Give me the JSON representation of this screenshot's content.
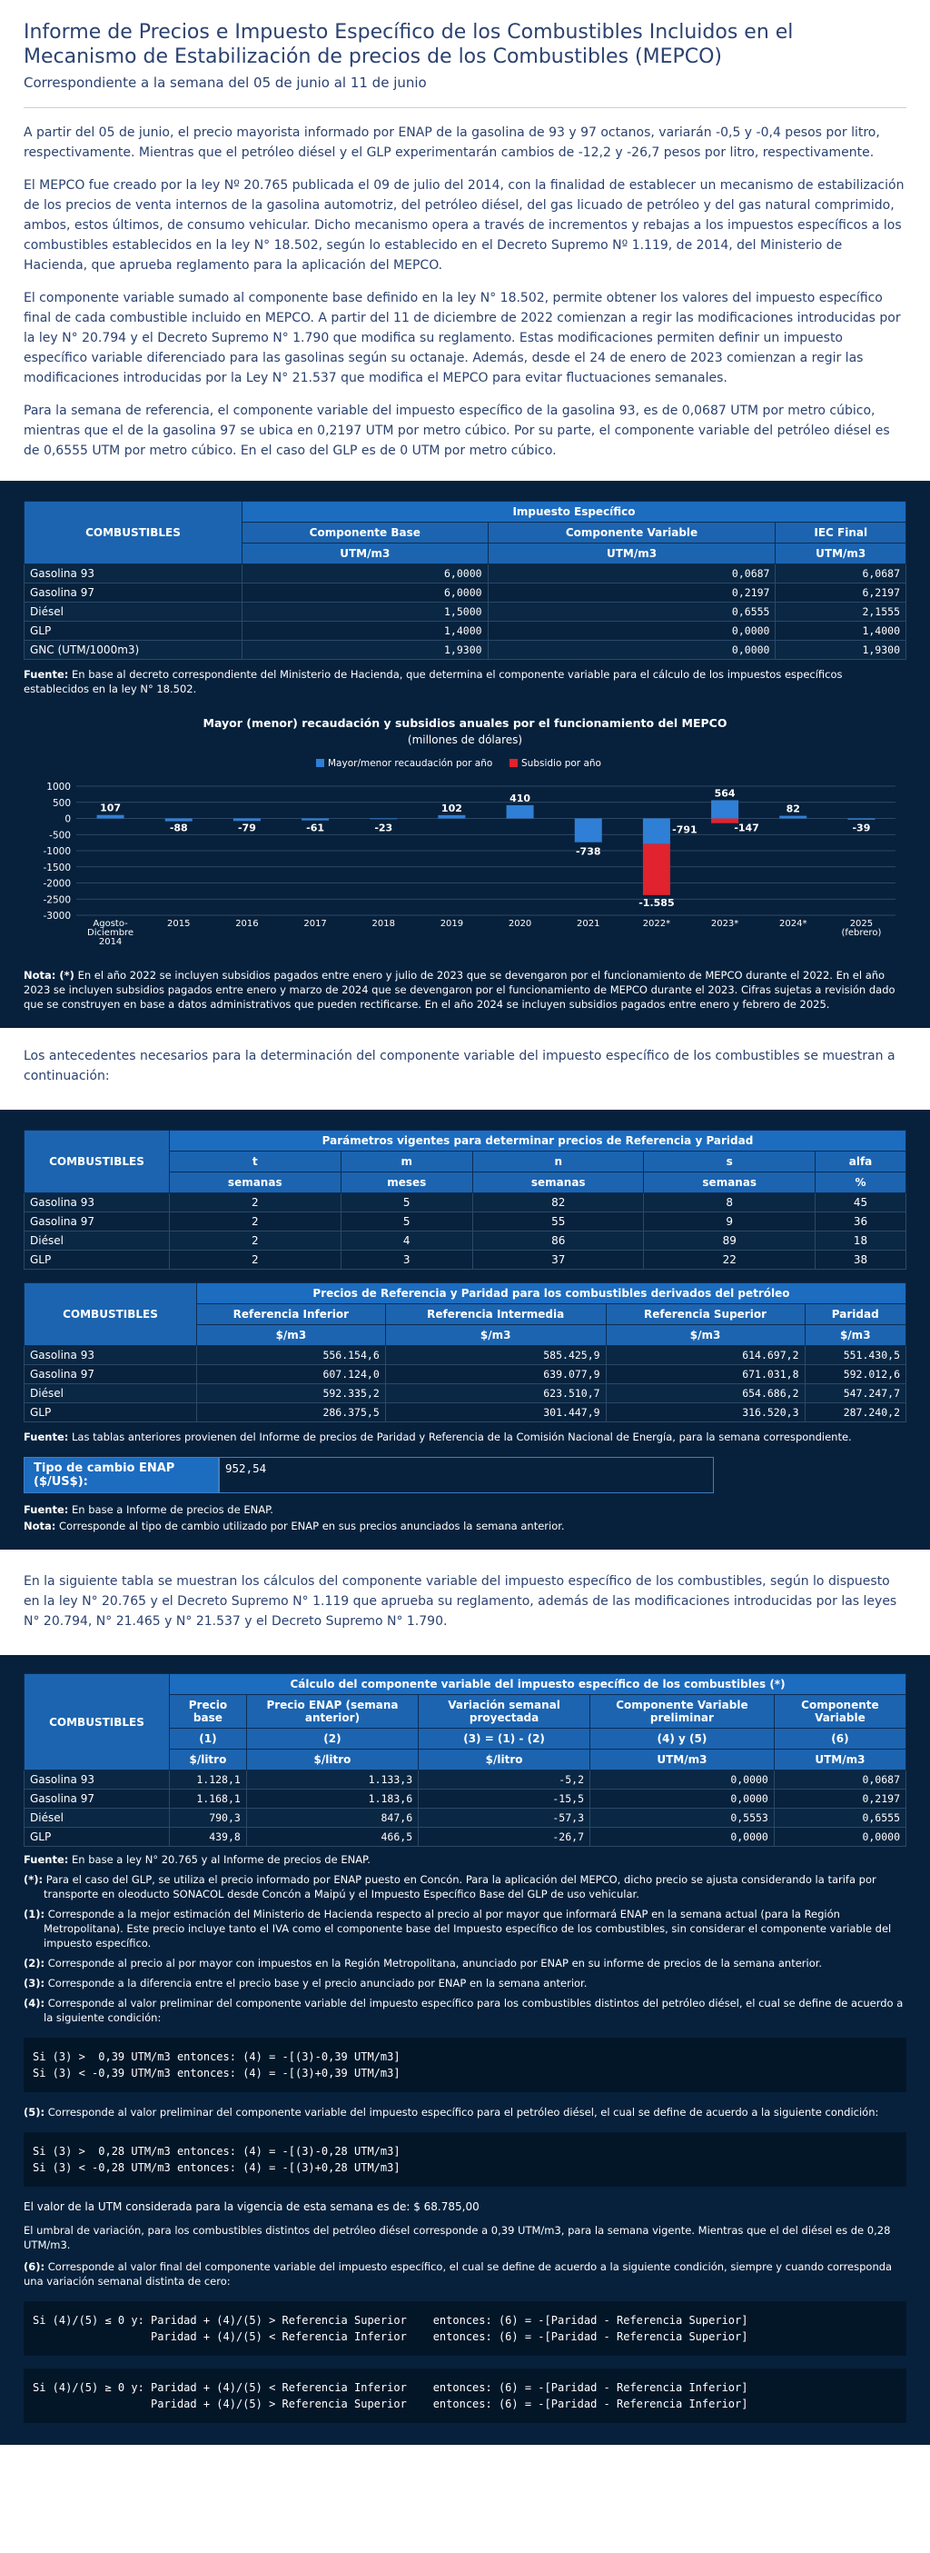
{
  "header": {
    "title": "Informe de Precios e Impuesto Específico de los Combustibles Incluidos en el Mecanismo de Estabilización de precios de los Combustibles (MEPCO)",
    "subtitle": "Correspondiente a la semana del 05 de junio al 11 de junio"
  },
  "intro": [
    "A partir del 05 de junio, el precio mayorista informado por ENAP de la gasolina de 93 y 97 octanos, variarán -0,5 y -0,4 pesos por litro, respectivamente. Mientras que el petróleo diésel y el GLP experimentarán cambios de -12,2 y -26,7 pesos por litro, respectivamente.",
    "El MEPCO fue creado por la ley Nº 20.765 publicada el 09 de julio del 2014, con la finalidad de establecer un mecanismo de estabilización de los precios de venta internos de la gasolina automotriz, del petróleo diésel, del gas licuado de petróleo y del gas natural comprimido, ambos, estos últimos, de consumo vehicular. Dicho mecanismo opera a través de incrementos y rebajas a los impuestos específicos a los combustibles establecidos en la ley N° 18.502, según lo establecido en el Decreto Supremo Nº 1.119, de 2014, del Ministerio de Hacienda, que aprueba reglamento para la aplicación del MEPCO.",
    "El componente variable sumado al componente base definido en la ley N° 18.502, permite obtener los valores del impuesto específico final de cada combustible incluido en MEPCO. A partir del 11 de diciembre de 2022 comienzan a regir las modificaciones introducidas por la ley N° 20.794 y el Decreto Supremo N° 1.790 que modifica su reglamento. Estas modificaciones permiten definir un impuesto específico variable diferenciado para las gasolinas según su octanaje. Además, desde el 24 de enero de 2023 comienzan a regir las modificaciones introducidas por la Ley N° 21.537 que modifica el MEPCO para evitar fluctuaciones semanales.",
    "Para la semana de referencia, el componente variable del impuesto específico de la gasolina 93, es de 0,0687 UTM por metro cúbico, mientras que el de la gasolina 97 se ubica en 0,2197 UTM por metro cúbico. Por su parte, el componente variable del petróleo diésel es de 0,6555 UTM por metro cúbico. En el caso del GLP es de 0 UTM por metro cúbico."
  ],
  "iec": {
    "group": "Impuesto Específico",
    "col0": "COMBUSTIBLES",
    "cols": [
      "Componente Base",
      "Componente Variable",
      "IEC Final"
    ],
    "units": [
      "UTM/m3",
      "UTM/m3",
      "UTM/m3"
    ],
    "rows": [
      [
        "Gasolina 93",
        "6,0000",
        "0,0687",
        "6,0687"
      ],
      [
        "Gasolina 97",
        "6,0000",
        "0,2197",
        "6,2197"
      ],
      [
        "Diésel",
        "1,5000",
        "0,6555",
        "2,1555"
      ],
      [
        "GLP",
        "1,4000",
        "0,0000",
        "1,4000"
      ],
      [
        "GNC (UTM/1000m3)",
        "1,9300",
        "0,0000",
        "1,9300"
      ]
    ],
    "fuente_label": "Fuente:",
    "fuente": " En base al decreto correspondiente del Ministerio de Hacienda, que determina el componente variable para el cálculo de los impuestos específicos establecidos en la ley N° 18.502."
  },
  "chart_data": {
    "type": "bar",
    "title": "Mayor (menor) recaudación y subsidios anuales por el funcionamiento del MEPCO",
    "subtitle": "(millones de dólares)",
    "categories": [
      "Agosto-Diciembre 2014",
      "2015",
      "2016",
      "2017",
      "2018",
      "2019",
      "2020",
      "2021",
      "2022*",
      "2023*",
      "2024*",
      "2025 (febrero)"
    ],
    "series": [
      {
        "name": "Mayor/menor recaudación por año",
        "color": "#2f7fd6",
        "values": [
          107,
          -88,
          -79,
          -61,
          -23,
          102,
          410,
          -738,
          -791,
          564,
          82,
          -39
        ]
      },
      {
        "name": "Subsidio por año",
        "color": "#e0232e",
        "values": [
          0,
          0,
          0,
          0,
          0,
          0,
          0,
          0,
          -1585,
          -147,
          0,
          0
        ]
      }
    ],
    "ylim": [
      -3000,
      1000
    ],
    "yticks": [
      1000,
      500,
      0,
      -500,
      -1000,
      -1500,
      -2000,
      -2500,
      -3000
    ],
    "legend": "top-center",
    "stacked": true,
    "labels": [
      "107",
      "-88",
      "-79",
      "-61",
      "-23",
      "102",
      "410",
      "-738",
      "-791",
      "564",
      "82",
      "-39"
    ],
    "sub_labels": [
      "-1.585",
      "-147"
    ]
  },
  "chart_note": {
    "label": "Nota: (*)",
    "text": " En el año 2022 se incluyen subsidios pagados entre enero y julio de 2023 que se devengaron por el funcionamiento de MEPCO durante el 2022. En el año 2023 se incluyen subsidios pagados entre enero y marzo de 2024 que se devengaron por el funcionamiento de MEPCO durante el 2023. Cifras sujetas a revisión dado que se construyen en base a datos administrativos que pueden rectificarse. En el año 2024 se incluyen subsidios pagados entre enero y febrero de 2025."
  },
  "antecedentes": "Los antecedentes necesarios para la determinación del componente variable del impuesto específico de los combustibles se muestran a continuación:",
  "param": {
    "title": "Parámetros vigentes para determinar precios de Referencia y Paridad",
    "col0": "COMBUSTIBLES",
    "cols": [
      "t",
      "m",
      "n",
      "s",
      "alfa"
    ],
    "units": [
      "semanas",
      "meses",
      "semanas",
      "semanas",
      "%"
    ],
    "rows": [
      [
        "Gasolina 93",
        "2",
        "5",
        "82",
        "8",
        "45"
      ],
      [
        "Gasolina 97",
        "2",
        "5",
        "55",
        "9",
        "36"
      ],
      [
        "Diésel",
        "2",
        "4",
        "86",
        "89",
        "18"
      ],
      [
        "GLP",
        "2",
        "3",
        "37",
        "22",
        "38"
      ]
    ]
  },
  "ref": {
    "title": "Precios de Referencia y Paridad para los combustibles derivados del petróleo",
    "col0": "COMBUSTIBLES",
    "cols": [
      "Referencia Inferior",
      "Referencia Intermedia",
      "Referencia Superior",
      "Paridad"
    ],
    "units": [
      "$/m3",
      "$/m3",
      "$/m3",
      "$/m3"
    ],
    "rows": [
      [
        "Gasolina 93",
        "556.154,6",
        "585.425,9",
        "614.697,2",
        "551.430,5"
      ],
      [
        "Gasolina 97",
        "607.124,0",
        "639.077,9",
        "671.031,8",
        "592.012,6"
      ],
      [
        "Diésel",
        "592.335,2",
        "623.510,7",
        "654.686,2",
        "547.247,7"
      ],
      [
        "GLP",
        "286.375,5",
        "301.447,9",
        "316.520,3",
        "287.240,2"
      ]
    ],
    "fuente_label": "Fuente:",
    "fuente": " Las tablas anteriores provienen del Informe de precios de Paridad y Referencia de la Comisión Nacional de Energía, para la semana correspondiente."
  },
  "tc": {
    "label": "Tipo de cambio ENAP ($/US$):",
    "value": "952,54",
    "fuente_label": "Fuente:",
    "fuente": " En base a Informe de precios de ENAP.",
    "nota_label": "Nota:",
    "nota": " Corresponde al tipo de cambio utilizado por ENAP en sus precios anunciados la semana anterior."
  },
  "calc_intro": "En la siguiente tabla se muestran los cálculos del componente variable del impuesto específico de los combustibles, según lo dispuesto en la ley N° 20.765 y el Decreto Supremo N° 1.119 que aprueba su reglamento, además de las modificaciones introducidas por las leyes N° 20.794, N° 21.465 y N° 21.537 y el Decreto Supremo N° 1.790.",
  "calc": {
    "title": "Cálculo del componente variable del impuesto específico de los combustibles (*)",
    "col0": "COMBUSTIBLES",
    "cols": [
      "Precio base",
      "Precio ENAP (semana anterior)",
      "Variación semanal proyectada",
      "Componente Variable preliminar",
      "Componente Variable"
    ],
    "ids": [
      "(1)",
      "(2)",
      "(3) = (1) - (2)",
      "(4) y (5)",
      "(6)"
    ],
    "units": [
      "$/litro",
      "$/litro",
      "$/litro",
      "UTM/m3",
      "UTM/m3"
    ],
    "rows": [
      [
        "Gasolina 93",
        "1.128,1",
        "1.133,3",
        "-5,2",
        "0,0000",
        "0,0687"
      ],
      [
        "Gasolina 97",
        "1.168,1",
        "1.183,6",
        "-15,5",
        "0,0000",
        "0,2197"
      ],
      [
        "Diésel",
        "790,3",
        "847,6",
        "-57,3",
        "0,5553",
        "0,6555"
      ],
      [
        "GLP",
        "439,8",
        "466,5",
        "-26,7",
        "0,0000",
        "0,0000"
      ]
    ]
  },
  "footnotes": [
    {
      "label": "Fuente:",
      "text": " En base a ley N° 20.765 y al Informe de precios de ENAP."
    },
    {
      "label": "(*):",
      "text": " Para el caso del GLP, se utiliza el precio informado por ENAP puesto en Concón. Para la aplicación del MEPCO, dicho precio se ajusta considerando la tarifa por transporte en oleoducto SONACOL desde Concón a Maipú y el Impuesto Específico Base del GLP de uso vehicular."
    },
    {
      "label": "(1):",
      "text": " Corresponde a la mejor estimación del Ministerio de Hacienda respecto al precio al por mayor que informará ENAP en la semana actual (para la Región Metropolitana). Este precio incluye tanto el IVA como el componente base del Impuesto específico de los combustibles, sin considerar el componente variable del impuesto específico."
    },
    {
      "label": "(2):",
      "text": " Corresponde al precio al por mayor con impuestos en la Región Metropolitana, anunciado por ENAP en su informe de precios de la semana anterior."
    },
    {
      "label": "(3):",
      "text": " Corresponde a la diferencia entre el precio base y el precio anunciado por ENAP en la semana anterior."
    },
    {
      "label": "(4):",
      "text": " Corresponde al valor preliminar del componente variable del impuesto específico para los combustibles distintos del petróleo diésel, el cual se define de acuerdo a la siguiente condición:"
    }
  ],
  "code4": "Si (3) >  0,39 UTM/m3 entonces: (4) = -[(3)-0,39 UTM/m3]\nSi (3) < -0,39 UTM/m3 entonces: (4) = -[(3)+0,39 UTM/m3]",
  "fn5": {
    "label": "(5):",
    "text": " Corresponde al valor preliminar del componente variable del impuesto específico para el petróleo diésel, el cual se define de acuerdo a la siguiente condición:"
  },
  "code5": "Si (3) >  0,28 UTM/m3 entonces: (4) = -[(3)-0,28 UTM/m3]\nSi (3) < -0,28 UTM/m3 entonces: (4) = -[(3)+0,28 UTM/m3]",
  "utm": "El valor de la UTM considerada para la vigencia de esta semana es de: $ 68.785,00",
  "umbral": "El umbral de variación, para los combustibles distintos del petróleo diésel corresponde a 0,39 UTM/m3, para la semana vigente. Mientras que el del diésel es de 0,28 UTM/m3.",
  "fn6": {
    "label": "(6):",
    "text": " Corresponde al valor final del componente variable del impuesto específico, el cual se define de acuerdo a la siguiente condición, siempre y cuando corresponda una variación semanal distinta de cero:"
  },
  "code6a": "Si (4)/(5) ≤ 0 y: Paridad + (4)/(5) > Referencia Superior    entonces: (6) = -[Paridad - Referencia Superior]\n                  Paridad + (4)/(5) < Referencia Inferior    entonces: (6) = -[Paridad - Referencia Superior]",
  "code6b": "Si (4)/(5) ≥ 0 y: Paridad + (4)/(5) < Referencia Inferior    entonces: (6) = -[Paridad - Referencia Inferior]\n                  Paridad + (4)/(5) > Referencia Superior    entonces: (6) = -[Paridad - Referencia Inferior]"
}
